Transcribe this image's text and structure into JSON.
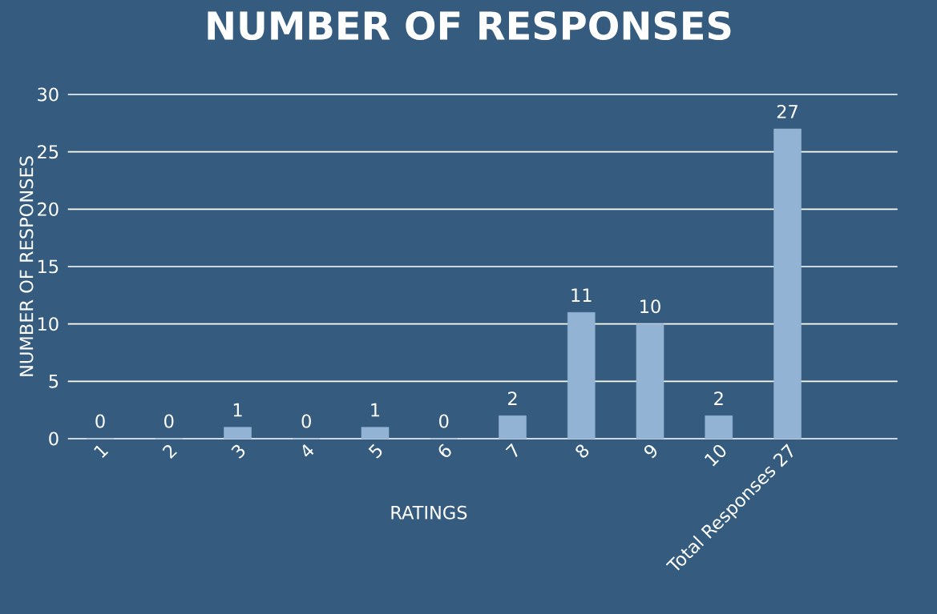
{
  "chart_data": {
    "type": "bar",
    "title": "NUMBER OF RESPONSES",
    "xlabel": "RATINGS",
    "ylabel": "NUMBER OF RESPONSES",
    "categories": [
      "1",
      "2",
      "3",
      "4",
      "5",
      "6",
      "7",
      "8",
      "9",
      "10",
      "Total Responses 27"
    ],
    "values": [
      0,
      0,
      1,
      0,
      1,
      0,
      2,
      11,
      10,
      2,
      27
    ],
    "color": "#93b3d4",
    "ylim": [
      0,
      30
    ],
    "yticks": [
      0,
      5,
      10,
      15,
      20,
      25,
      30
    ],
    "grid": "y",
    "data_labels": true
  }
}
